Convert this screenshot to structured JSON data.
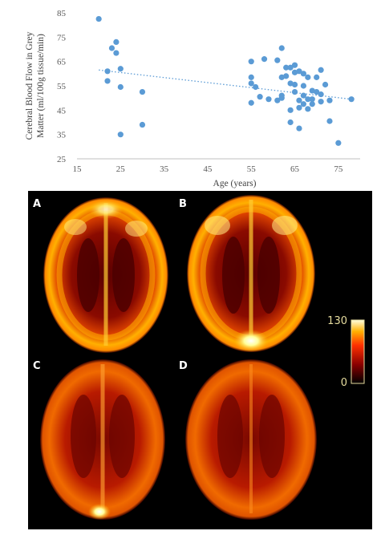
{
  "chart_data": {
    "type": "scatter",
    "title": "",
    "xlabel": "Age (years)",
    "ylabel_line1": "Cerebral Blood Flow  in Grey",
    "ylabel_line2": "Matter (ml/100g tissue/min)",
    "xlim": [
      15,
      80
    ],
    "ylim": [
      25,
      85
    ],
    "xticks": [
      15,
      25,
      35,
      45,
      55,
      65,
      75
    ],
    "yticks": [
      25,
      35,
      45,
      55,
      65,
      75,
      85
    ],
    "grid": false,
    "legend": "none",
    "trendline": {
      "style": "dotted-linear",
      "from": [
        20,
        61.5
      ],
      "to": [
        78,
        49.5
      ]
    },
    "series": [
      {
        "points": [
          [
            20,
            82.5
          ],
          [
            22,
            57
          ],
          [
            22,
            61
          ],
          [
            23,
            70.5
          ],
          [
            24,
            73
          ],
          [
            24,
            68.5
          ],
          [
            25,
            62
          ],
          [
            25,
            54.5
          ],
          [
            25,
            35
          ],
          [
            30,
            52.5
          ],
          [
            30,
            39
          ],
          [
            55,
            65
          ],
          [
            55,
            58.5
          ],
          [
            55,
            56
          ],
          [
            55,
            48
          ],
          [
            56,
            54.5
          ],
          [
            57,
            50.5
          ],
          [
            58,
            66
          ],
          [
            59,
            49.5
          ],
          [
            61,
            49
          ],
          [
            61,
            65.5
          ],
          [
            62,
            70.5
          ],
          [
            62,
            58.5
          ],
          [
            62,
            51
          ],
          [
            62,
            50
          ],
          [
            63,
            62.5
          ],
          [
            63,
            59
          ],
          [
            64,
            62.5
          ],
          [
            64,
            56
          ],
          [
            64,
            45
          ],
          [
            64,
            40
          ],
          [
            65,
            63.5
          ],
          [
            65,
            60.5
          ],
          [
            65,
            55.5
          ],
          [
            65,
            52.5
          ],
          [
            66,
            61
          ],
          [
            66,
            49
          ],
          [
            66,
            46
          ],
          [
            66,
            37.5
          ],
          [
            67,
            60
          ],
          [
            67,
            55
          ],
          [
            67,
            51
          ],
          [
            67,
            47.5
          ],
          [
            68,
            58.5
          ],
          [
            68,
            49.5
          ],
          [
            68,
            45.5
          ],
          [
            69,
            53
          ],
          [
            69,
            49.5
          ],
          [
            69,
            47.5
          ],
          [
            70,
            58.5
          ],
          [
            70,
            52.5
          ],
          [
            71,
            61.5
          ],
          [
            71,
            51.5
          ],
          [
            71,
            48.5
          ],
          [
            72,
            55.5
          ],
          [
            73,
            49
          ],
          [
            73,
            40.5
          ],
          [
            75,
            31.5
          ],
          [
            78,
            49.5
          ]
        ]
      }
    ]
  },
  "figure": {
    "colors": {
      "marker": "#5b9bd5",
      "trend": "#5b9bd5",
      "axis": "#bfbfbf",
      "panel_bg": "#000000",
      "colorbar_text": "#e6dc9e"
    },
    "panels": [
      {
        "label": "A",
        "hotspot": "top"
      },
      {
        "label": "B",
        "hotspot": "bottom"
      },
      {
        "label": "C",
        "hotspot": "bottom"
      },
      {
        "label": "D",
        "hotspot": "none"
      }
    ],
    "colorbar": {
      "max_label": "130",
      "min_label": "0"
    }
  }
}
